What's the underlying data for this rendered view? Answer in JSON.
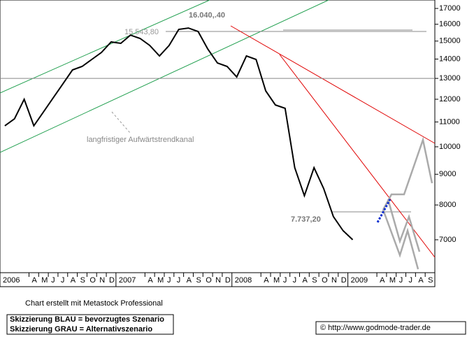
{
  "chart_data": {
    "type": "line",
    "color": "#000000",
    "log_scale": true,
    "ylim": [
      6170,
      17560
    ],
    "yticks": [
      7000,
      8000,
      9000,
      10000,
      11000,
      12000,
      13000,
      14000,
      15000,
      16000,
      17000
    ],
    "xlim": [
      0,
      45
    ],
    "xticks": [
      {
        "value": 0,
        "label": "2006"
      },
      {
        "value": 3,
        "label": "A"
      },
      {
        "value": 4,
        "label": "M"
      },
      {
        "value": 5,
        "label": "J"
      },
      {
        "value": 6,
        "label": "J"
      },
      {
        "value": 7,
        "label": "A"
      },
      {
        "value": 8,
        "label": "S"
      },
      {
        "value": 9,
        "label": "O"
      },
      {
        "value": 10,
        "label": "N"
      },
      {
        "value": 11,
        "label": "D"
      },
      {
        "value": 12,
        "label": "2007"
      },
      {
        "value": 15,
        "label": "A"
      },
      {
        "value": 16,
        "label": "M"
      },
      {
        "value": 17,
        "label": "J"
      },
      {
        "value": 18,
        "label": "J"
      },
      {
        "value": 19,
        "label": "A"
      },
      {
        "value": 20,
        "label": "S"
      },
      {
        "value": 21,
        "label": "O"
      },
      {
        "value": 22,
        "label": "N"
      },
      {
        "value": 23,
        "label": "D"
      },
      {
        "value": 24,
        "label": "2008"
      },
      {
        "value": 27,
        "label": "A"
      },
      {
        "value": 28,
        "label": "M"
      },
      {
        "value": 29,
        "label": "J"
      },
      {
        "value": 30,
        "label": "J"
      },
      {
        "value": 31,
        "label": "A"
      },
      {
        "value": 32,
        "label": "S"
      },
      {
        "value": 33,
        "label": "O"
      },
      {
        "value": 34,
        "label": "N"
      },
      {
        "value": 35,
        "label": "D"
      },
      {
        "value": 36,
        "label": "2009"
      },
      {
        "value": 39,
        "label": "A"
      },
      {
        "value": 40,
        "label": "M"
      },
      {
        "value": 41,
        "label": "J"
      },
      {
        "value": 42,
        "label": "J"
      },
      {
        "value": 43,
        "label": "A"
      },
      {
        "value": 44,
        "label": "S"
      }
    ],
    "values": [
      10840,
      11130,
      12000,
      10840,
      11430,
      12060,
      12720,
      13430,
      13610,
      13980,
      14360,
      14950,
      14870,
      15350,
      15150,
      14750,
      14170,
      14750,
      15690,
      15770,
      15560,
      14550,
      13790,
      13610,
      13070,
      14170,
      13980,
      12390,
      11740,
      11590,
      9230,
      8290,
      9230,
      8520,
      7650,
      7250,
      7000
    ],
    "annotations": [
      "16.040,.40",
      "15.543,80",
      "7.737,20",
      "langfristiger Aufwärtstrendkanal"
    ],
    "footer": "Chart erstellt mit Metastock Professional",
    "legend": [
      "Skizzierung BLAU = bevorzugtes Szenario",
      "Skizzierung GRAU = Alternativszenario"
    ],
    "copyright": "© http://www.godmode-trader.de"
  }
}
